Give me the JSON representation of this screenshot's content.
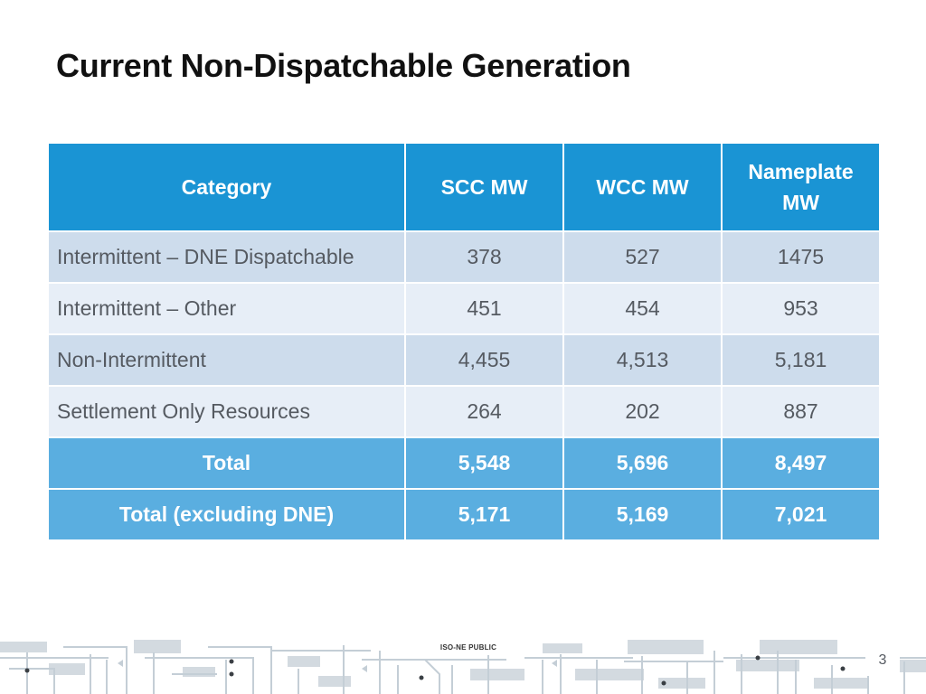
{
  "slide": {
    "title": "Current Non-Dispatchable Generation",
    "footer_label": "ISO-NE PUBLIC",
    "page_number": "3"
  },
  "table": {
    "headers": [
      "Category",
      "SCC MW",
      "WCC MW",
      "Nameplate MW"
    ],
    "rows": [
      [
        "Intermittent – DNE Dispatchable",
        "378",
        "527",
        "1475"
      ],
      [
        "Intermittent – Other",
        "451",
        "454",
        "953"
      ],
      [
        "Non-Intermittent",
        "4,455",
        "4,513",
        "5,181"
      ],
      [
        "Settlement Only Resources",
        "264",
        "202",
        "887"
      ]
    ],
    "totals": [
      [
        "Total",
        "5,548",
        "5,696",
        "8,497"
      ],
      [
        "Total (excluding DNE)",
        "5,171",
        "5,169",
        "7,021"
      ]
    ]
  },
  "colors": {
    "header": "#1a94d4",
    "row_dark": "#cddcec",
    "row_light": "#e7eef7",
    "total": "#5aaee0",
    "footer_lines": "#c4ced6"
  }
}
